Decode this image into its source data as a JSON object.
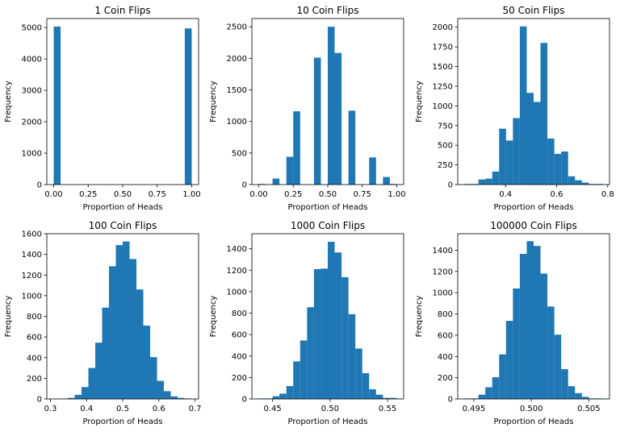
{
  "chart_data": [
    {
      "type": "bar",
      "title": "1 Coin Flips",
      "xlabel": "Proportion of Heads",
      "ylabel": "Frequency",
      "bin_start": 0,
      "bin_width": 0.05,
      "values": [
        5030,
        0,
        0,
        0,
        0,
        0,
        0,
        0,
        0,
        0,
        0,
        0,
        0,
        0,
        0,
        0,
        0,
        0,
        0,
        4970
      ],
      "xlim": [
        -0.05,
        1.05
      ],
      "ylim": [
        0,
        5285
      ],
      "xticks": [
        0,
        0.25,
        0.5,
        0.75,
        1
      ],
      "xtick_labels": [
        "0.00",
        "0.25",
        "0.50",
        "0.75",
        "1.00"
      ],
      "yticks": [
        0,
        1000,
        2000,
        3000,
        4000,
        5000
      ],
      "ytick_labels": [
        "0",
        "1000",
        "2000",
        "3000",
        "4000",
        "5000"
      ]
    },
    {
      "type": "bar",
      "title": "10 Coin Flips",
      "xlabel": "Proportion of Heads",
      "ylabel": "Frequency",
      "bin_start": 0,
      "bin_width": 0.05,
      "values": [
        10,
        0,
        95,
        0,
        440,
        1160,
        0,
        0,
        2010,
        0,
        2500,
        2085,
        0,
        1170,
        0,
        0,
        430,
        0,
        120,
        10
      ],
      "xlim": [
        -0.05,
        1.05
      ],
      "ylim": [
        0,
        2630
      ],
      "xticks": [
        0,
        0.25,
        0.5,
        0.75,
        1
      ],
      "xtick_labels": [
        "0.00",
        "0.25",
        "0.50",
        "0.75",
        "1.00"
      ],
      "yticks": [
        0,
        500,
        1000,
        1500,
        2000,
        2500
      ],
      "ytick_labels": [
        "0",
        "500",
        "1000",
        "1500",
        "2000",
        "2500"
      ]
    },
    {
      "type": "bar",
      "title": "50 Coin Flips",
      "xlabel": "Proportion of Heads",
      "ylabel": "Frequency",
      "bin_start": 0.24,
      "bin_width": 0.027,
      "values": [
        8,
        8,
        65,
        75,
        165,
        710,
        560,
        845,
        2010,
        1165,
        1050,
        1800,
        585,
        390,
        420,
        105,
        55,
        25,
        8,
        8
      ],
      "xlim": [
        0.213,
        0.807
      ],
      "ylim": [
        0,
        2110
      ],
      "xticks": [
        0.4,
        0.6,
        0.8
      ],
      "xtick_labels": [
        "0.4",
        "0.6",
        "0.8"
      ],
      "yticks": [
        0,
        250,
        500,
        750,
        1000,
        1250,
        1500,
        1750,
        2000
      ],
      "ytick_labels": [
        "0",
        "250",
        "500",
        "750",
        "1000",
        "1250",
        "1500",
        "1750",
        "2000"
      ]
    },
    {
      "type": "bar",
      "title": "100 Coin Flips",
      "xlabel": "Proportion of Heads",
      "ylabel": "Frequency",
      "bin_start": 0.31,
      "bin_width": 0.019,
      "values": [
        3,
        3,
        10,
        40,
        115,
        300,
        545,
        885,
        1285,
        1490,
        1525,
        1355,
        1060,
        710,
        405,
        175,
        75,
        25,
        10,
        5
      ],
      "xlim": [
        0.29,
        0.71
      ],
      "ylim": [
        0,
        1600
      ],
      "xticks": [
        0.3,
        0.4,
        0.5,
        0.6,
        0.7
      ],
      "xtick_labels": [
        "0.3",
        "0.4",
        "0.5",
        "0.6",
        "0.7"
      ],
      "yticks": [
        0,
        200,
        400,
        600,
        800,
        1000,
        1200,
        1400,
        1600
      ],
      "ytick_labels": [
        "0",
        "200",
        "400",
        "600",
        "800",
        "1000",
        "1200",
        "1400",
        "1600"
      ]
    },
    {
      "type": "bar",
      "title": "1000 Coin Flips",
      "xlabel": "Proportion of Heads",
      "ylabel": "Frequency",
      "bin_start": 0.438,
      "bin_width": 0.006,
      "values": [
        5,
        5,
        25,
        50,
        120,
        350,
        545,
        855,
        1210,
        1215,
        1465,
        1365,
        1135,
        790,
        470,
        240,
        90,
        40,
        10,
        10
      ],
      "xlim": [
        0.432,
        0.564
      ],
      "ylim": [
        0,
        1540
      ],
      "xticks": [
        0.45,
        0.5,
        0.55
      ],
      "xtick_labels": [
        "0.45",
        "0.50",
        "0.55"
      ],
      "yticks": [
        0,
        200,
        400,
        600,
        800,
        1000,
        1200,
        1400
      ],
      "ytick_labels": [
        "0",
        "200",
        "400",
        "600",
        "800",
        "1000",
        "1200",
        "1400"
      ]
    },
    {
      "type": "bar",
      "title": "100000 Coin Flips",
      "xlabel": "Proportion of Heads",
      "ylabel": "Frequency",
      "bin_start": 0.4942,
      "bin_width": 0.0006,
      "values": [
        5,
        5,
        40,
        110,
        205,
        420,
        735,
        1040,
        1365,
        1485,
        1440,
        1180,
        870,
        605,
        280,
        120,
        55,
        20,
        5,
        5
      ],
      "xlim": [
        0.4936,
        0.5068
      ],
      "ylim": [
        0,
        1555
      ],
      "xticks": [
        0.495,
        0.5,
        0.505
      ],
      "xtick_labels": [
        "0.495",
        "0.500",
        "0.505"
      ],
      "yticks": [
        0,
        200,
        400,
        600,
        800,
        1000,
        1200,
        1400
      ],
      "ytick_labels": [
        "0",
        "200",
        "400",
        "600",
        "800",
        "1000",
        "1200",
        "1400"
      ]
    }
  ],
  "colors": {
    "bar": "#1f77b4",
    "axes": "#000000"
  }
}
